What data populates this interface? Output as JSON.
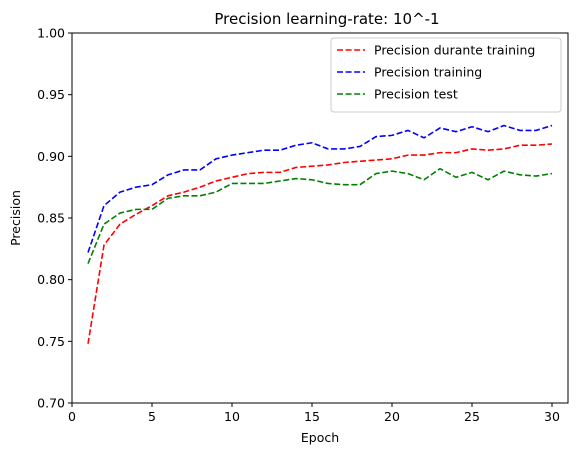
{
  "chart_data": {
    "type": "line",
    "title": "Precision  learning-rate: 10^-1",
    "xlabel": "Epoch",
    "ylabel": "Precision",
    "xlim": [
      0,
      31
    ],
    "ylim": [
      0.7,
      1.0
    ],
    "x_ticks": [
      0,
      5,
      10,
      15,
      20,
      25,
      30
    ],
    "y_ticks": [
      "0.70",
      "0.75",
      "0.80",
      "0.85",
      "0.90",
      "0.95",
      "1.00"
    ],
    "grid": false,
    "legend_position": "top-right",
    "x": [
      1,
      2,
      3,
      4,
      5,
      6,
      7,
      8,
      9,
      10,
      11,
      12,
      13,
      14,
      15,
      16,
      17,
      18,
      19,
      20,
      21,
      22,
      23,
      24,
      25,
      26,
      27,
      28,
      29,
      30
    ],
    "series": [
      {
        "name": "Precision durante training",
        "color": "#ff0000",
        "line_style": "dashed",
        "values": [
          0.748,
          0.828,
          0.845,
          0.853,
          0.86,
          0.868,
          0.871,
          0.875,
          0.88,
          0.883,
          0.886,
          0.887,
          0.887,
          0.891,
          0.892,
          0.893,
          0.895,
          0.896,
          0.897,
          0.898,
          0.901,
          0.901,
          0.903,
          0.903,
          0.906,
          0.905,
          0.906,
          0.909,
          0.909,
          0.91
        ]
      },
      {
        "name": "Precision training",
        "color": "#0000ff",
        "line_style": "dashed",
        "values": [
          0.822,
          0.86,
          0.871,
          0.875,
          0.877,
          0.885,
          0.889,
          0.889,
          0.898,
          0.901,
          0.903,
          0.905,
          0.905,
          0.909,
          0.911,
          0.906,
          0.906,
          0.908,
          0.916,
          0.917,
          0.921,
          0.915,
          0.923,
          0.92,
          0.924,
          0.92,
          0.925,
          0.921,
          0.921,
          0.925
        ]
      },
      {
        "name": "Precision test",
        "color": "#008000",
        "line_style": "dashed",
        "values": [
          0.813,
          0.845,
          0.854,
          0.857,
          0.857,
          0.866,
          0.868,
          0.868,
          0.871,
          0.878,
          0.878,
          0.878,
          0.88,
          0.882,
          0.881,
          0.878,
          0.877,
          0.877,
          0.886,
          0.888,
          0.886,
          0.881,
          0.89,
          0.883,
          0.887,
          0.881,
          0.888,
          0.885,
          0.884,
          0.886
        ]
      }
    ]
  }
}
